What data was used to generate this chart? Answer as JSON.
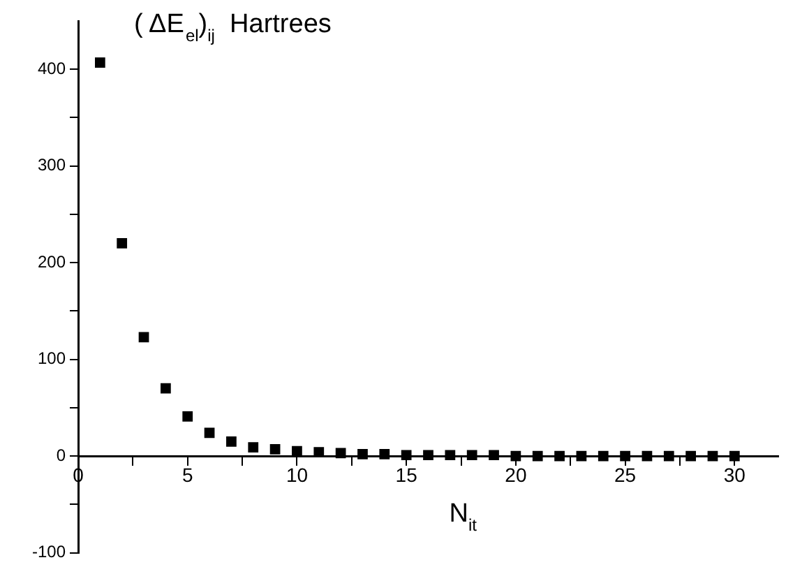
{
  "chart_data": {
    "type": "scatter",
    "xlabel": "N$_{it}$",
    "ylabel": "( ΔE$_{el}$)$_{ij}$  Hartrees",
    "x": [
      1,
      2,
      3,
      4,
      5,
      6,
      7,
      8,
      9,
      10,
      11,
      12,
      13,
      14,
      15,
      16,
      17,
      18,
      19,
      20,
      21,
      22,
      23,
      24,
      25,
      26,
      27,
      28,
      29,
      30
    ],
    "series": [
      {
        "color": "#000000",
        "values": [
          407,
          220,
          123,
          70,
          41,
          24,
          15,
          9,
          7,
          5,
          4,
          3,
          2,
          2,
          1,
          1,
          1,
          1,
          1,
          0,
          0,
          0,
          0,
          0,
          0,
          0,
          0,
          0,
          0,
          0
        ]
      }
    ],
    "xlim": [
      0,
      32
    ],
    "xticks": [
      0,
      {
        "value": 2.5,
        "label": null
      },
      5,
      {
        "value": 7.5,
        "label": null
      },
      10,
      {
        "value": 12.5,
        "label": null
      },
      15,
      {
        "value": 17.5,
        "label": null
      },
      20,
      {
        "value": 22.5,
        "label": null
      },
      25,
      {
        "value": 27.5,
        "label": null
      },
      30
    ],
    "ylim": [
      -100,
      450
    ],
    "yticks": [
      -100,
      {
        "value": -50,
        "label": null
      },
      0,
      {
        "value": 50,
        "label": null
      },
      100,
      {
        "value": 150,
        "label": null
      },
      200,
      {
        "value": 250,
        "label": null
      },
      300,
      {
        "value": 350,
        "label": null
      },
      400
    ],
    "grid": false,
    "legend": false,
    "marker": "square"
  }
}
